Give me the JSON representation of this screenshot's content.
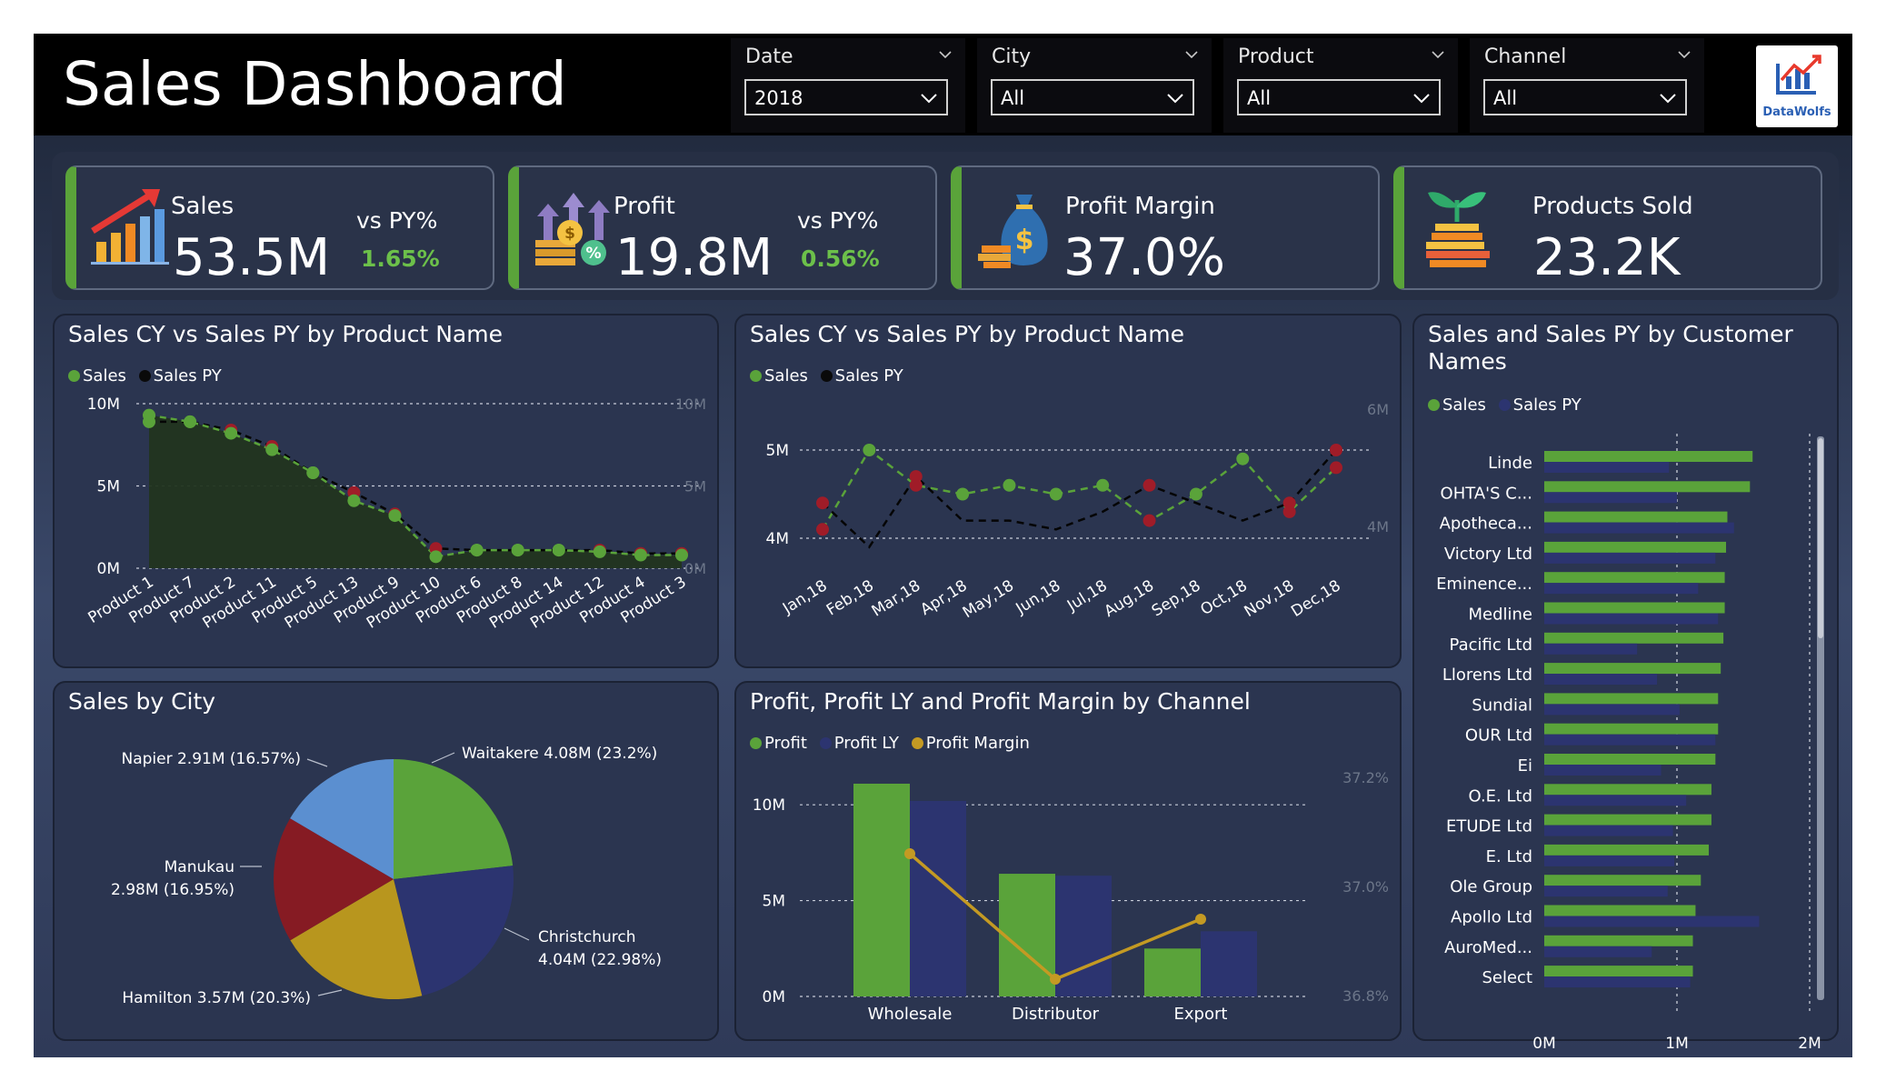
{
  "header": {
    "title": "Sales Dashboard",
    "filters": [
      {
        "label": "Date",
        "value": "2018"
      },
      {
        "label": "City",
        "value": "All"
      },
      {
        "label": "Product",
        "value": "All"
      },
      {
        "label": "Channel",
        "value": "All"
      }
    ],
    "logo_text": "DataWolfs"
  },
  "kpis": [
    {
      "label": "Sales",
      "value": "53.5M",
      "vs_label": "vs PY%",
      "vs_value": "1.65%",
      "icon": "rising-bar-chart-icon"
    },
    {
      "label": "Profit",
      "value": "19.8M",
      "vs_label": "vs PY%",
      "vs_value": "0.56%",
      "icon": "coins-percent-icon"
    },
    {
      "label": "Profit Margin",
      "value": "37.0%",
      "icon": "money-bag-icon"
    },
    {
      "label": "Products Sold",
      "value": "23.2K",
      "icon": "plant-coins-icon"
    }
  ],
  "colors": {
    "sales": "#5aa33a",
    "sales_py": "#0a0a0a",
    "neg": "#a01c28",
    "py_bar": "#2c3470",
    "margin": "#c49a23"
  },
  "chart_data": [
    {
      "id": "product_chart",
      "type": "area",
      "title": "Sales CY vs Sales PY by Product Name",
      "legend": [
        "Sales",
        "Sales PY"
      ],
      "categories": [
        "Product 1",
        "Product 7",
        "Product 2",
        "Product 11",
        "Product 5",
        "Product 13",
        "Product 9",
        "Product 10",
        "Product 6",
        "Product 8",
        "Product 14",
        "Product 12",
        "Product 4",
        "Product 3"
      ],
      "series": [
        {
          "name": "Sales",
          "values": [
            9.3,
            8.9,
            8.2,
            7.2,
            5.8,
            4.1,
            3.2,
            0.7,
            1.1,
            1.1,
            1.1,
            1.0,
            0.8,
            0.8
          ]
        },
        {
          "name": "Sales PY",
          "values": [
            8.9,
            8.9,
            8.4,
            7.4,
            5.8,
            4.6,
            3.3,
            1.2,
            1.1,
            1.1,
            1.1,
            1.1,
            0.9,
            0.9
          ]
        }
      ],
      "y_ticks": [
        "10M",
        "5M",
        "0M"
      ],
      "y2_ticks": [
        "10M",
        "5M",
        "0M"
      ],
      "ylim": [
        0,
        10
      ]
    },
    {
      "id": "month_chart",
      "type": "line",
      "title": "Sales CY vs Sales PY by Product Name",
      "legend": [
        "Sales",
        "Sales PY"
      ],
      "categories": [
        "Jan,18",
        "Feb,18",
        "Mar,18",
        "Apr,18",
        "May,18",
        "Jun,18",
        "Jul,18",
        "Aug,18",
        "Sep,18",
        "Oct,18",
        "Nov,18",
        "Dec,18"
      ],
      "series": [
        {
          "name": "Sales",
          "values": [
            4.1,
            5.0,
            4.6,
            4.5,
            4.6,
            4.5,
            4.6,
            4.2,
            4.5,
            4.9,
            4.3,
            4.8
          ]
        },
        {
          "name": "Sales PY",
          "values": [
            4.4,
            3.9,
            4.7,
            4.2,
            4.2,
            4.1,
            4.3,
            4.6,
            4.4,
            4.2,
            4.4,
            5.0
          ]
        }
      ],
      "y_ticks": [
        "5M",
        "4M"
      ],
      "y2_ticks": [
        "6M",
        "4M"
      ],
      "ylim": [
        3.8,
        5.1
      ]
    },
    {
      "id": "customer_chart",
      "type": "bar",
      "title": "Sales and Sales PY by Customer Names",
      "legend": [
        "Sales",
        "Sales PY"
      ],
      "categories": [
        "Linde",
        "OHTA'S C...",
        "Apotheca...",
        "Victory Ltd",
        "Eminence...",
        "Medline",
        "Pacific Ltd",
        "Llorens Ltd",
        "Sundial",
        "OUR Ltd",
        "Ei",
        "O.E. Ltd",
        "ETUDE Ltd",
        "E. Ltd",
        "Ole Group",
        "Apollo Ltd",
        "AuroMed...",
        "Select"
      ],
      "series": [
        {
          "name": "Sales",
          "values": [
            1.57,
            1.55,
            1.38,
            1.37,
            1.36,
            1.36,
            1.35,
            1.33,
            1.31,
            1.31,
            1.29,
            1.26,
            1.26,
            1.24,
            1.18,
            1.14,
            1.12,
            1.12
          ]
        },
        {
          "name": "Sales PY",
          "values": [
            0.94,
            1.0,
            1.43,
            1.29,
            1.16,
            1.31,
            0.7,
            0.85,
            1.02,
            1.29,
            0.88,
            1.07,
            0.97,
            0.98,
            0.93,
            1.62,
            0.81,
            1.1
          ]
        }
      ],
      "x_ticks": [
        "0M",
        "1M",
        "2M"
      ],
      "xlim": [
        0,
        2
      ]
    },
    {
      "id": "city_chart",
      "type": "pie",
      "title": "Sales by City",
      "slices": [
        {
          "label": "Waitakere",
          "value": 4.08,
          "pct": 23.2,
          "text": "Waitakere 4.08M (23.2%)",
          "color": "#5aa33a"
        },
        {
          "label": "Christchurch",
          "value": 4.04,
          "pct": 22.98,
          "text": "Christchurch 4.04M (22.98%)",
          "color": "#2c3470"
        },
        {
          "label": "Hamilton",
          "value": 3.57,
          "pct": 20.3,
          "text": "Hamilton 3.57M (20.3%)",
          "color": "#b8961e"
        },
        {
          "label": "Manukau",
          "value": 2.98,
          "pct": 16.95,
          "text": "Manukau 2.98M (16.95%)",
          "color": "#861b23"
        },
        {
          "label": "Napier",
          "value": 2.91,
          "pct": 16.57,
          "text": "Napier 2.91M (16.57%)",
          "color": "#5b8fd0"
        }
      ]
    },
    {
      "id": "channel_chart",
      "type": "bar",
      "title": "Profit, Profit LY and Profit Margin by Channel",
      "legend": [
        "Profit",
        "Profit LY",
        "Profit Margin"
      ],
      "categories": [
        "Wholesale",
        "Distributor",
        "Export"
      ],
      "series": [
        {
          "name": "Profit",
          "values": [
            11.1,
            6.4,
            2.5
          ]
        },
        {
          "name": "Profit LY",
          "values": [
            10.2,
            6.3,
            3.4
          ]
        },
        {
          "name": "Profit Margin",
          "values": [
            37.06,
            36.83,
            36.94
          ]
        }
      ],
      "y_ticks": [
        "10M",
        "5M",
        "0M"
      ],
      "y2_ticks": [
        "37.2%",
        "37.0%",
        "36.8%"
      ],
      "ylim": [
        0,
        12
      ],
      "y2lim": [
        36.8,
        37.2
      ]
    }
  ]
}
